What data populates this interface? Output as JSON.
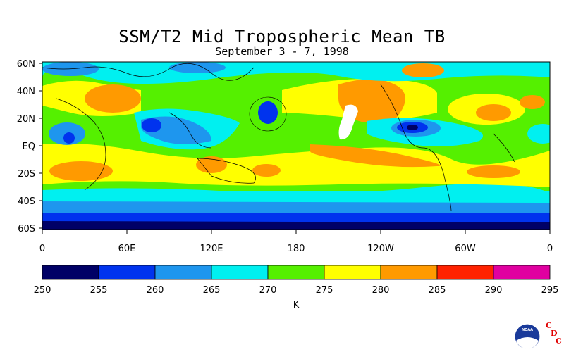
{
  "title": "SSM/T2 Mid Tropospheric Mean TB",
  "subtitle": "September 3 - 7, 1998",
  "map": {
    "lat_labels": [
      "60N",
      "40N",
      "20N",
      "EQ",
      "20S",
      "40S",
      "60S"
    ],
    "lon_labels": [
      "0",
      "60E",
      "120E",
      "180",
      "120W",
      "60W",
      "0"
    ]
  },
  "colorbar": {
    "ticks": [
      "250",
      "255",
      "260",
      "265",
      "270",
      "275",
      "280",
      "285",
      "290",
      "295"
    ],
    "colors": [
      "#000066",
      "#0033ee",
      "#1e96ee",
      "#00f0f0",
      "#55f000",
      "#ffff00",
      "#ff9a00",
      "#ff2200",
      "#e000a0"
    ],
    "unit": "K"
  },
  "logo": {
    "org": "NOAA",
    "letters": [
      "C",
      "D",
      "C"
    ]
  }
}
